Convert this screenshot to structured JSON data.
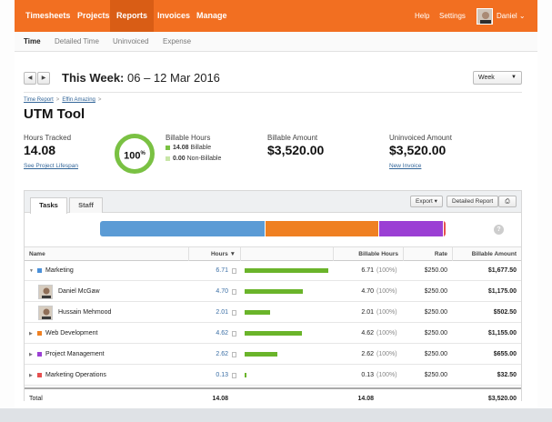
{
  "topnav": {
    "items": [
      "Timesheets",
      "Projects",
      "Reports",
      "Invoices",
      "Manage"
    ],
    "active": "Reports",
    "help": "Help",
    "settings": "Settings",
    "user": "Daniel",
    "caret": "⌄"
  },
  "subnav": {
    "items": [
      "Time",
      "Detailed Time",
      "Uninvoiced",
      "Expense"
    ],
    "active": "Time"
  },
  "week": {
    "prev": "◀",
    "next": "▶",
    "title_bold": "This Week:",
    "title_range": " 06 – 12 Mar 2016",
    "select_value": "Week",
    "select_caret": "▼"
  },
  "breadcrumb": {
    "items": [
      "Time Report",
      "Effin Amazing"
    ],
    "separator": ">"
  },
  "project_title": "UTM Tool",
  "stats": {
    "hours_tracked_label": "Hours Tracked",
    "hours_tracked_value": "14.08",
    "lifespan_link": "See Project Lifespan",
    "billable_percent": "100",
    "billable_percent_suffix": "%",
    "billable_hours_label": "Billable Hours",
    "billable_value": "14.08",
    "billable_text": "Billable",
    "non_billable_value": "0.00",
    "non_billable_text": "Non-Billable",
    "billable_amount_label": "Billable Amount",
    "billable_amount_value": "$3,520.00",
    "uninvoiced_label": "Uninvoiced Amount",
    "uninvoiced_value": "$3,520.00",
    "new_invoice_link": "New Invoice"
  },
  "colors": {
    "brand": "#f26f21",
    "billable": "#7ac143",
    "non_billable": "#c8e6a8",
    "bar_green": "#6ab42a"
  },
  "tabs": [
    "Tasks",
    "Staff"
  ],
  "toolbar": {
    "export": "Export ▾",
    "detailed_report": "Detailed Report",
    "print": "⎙",
    "help": "?"
  },
  "stack_bar": [
    {
      "color": "#5b9bd5",
      "share": 0.476
    },
    {
      "color": "#ef8022",
      "share": 0.328
    },
    {
      "color": "#9b3fd4",
      "share": 0.186
    },
    {
      "color": "#e65050",
      "share": 0.01
    }
  ],
  "table": {
    "columns": [
      "Name",
      "Hours",
      "Billable Hours",
      "Rate",
      "Billable Amount"
    ],
    "hours_sort": "▼",
    "rows": [
      {
        "type": "group",
        "expander": "▼",
        "color": "#4a90d9",
        "name": "Marketing",
        "hours": "6.71",
        "bar": 0.477,
        "billable": "6.71",
        "pct": "(100%)",
        "rate": "$250.00",
        "amount": "$1,677.50"
      },
      {
        "type": "person",
        "name": "Daniel McGaw",
        "hours": "4.70",
        "bar": 0.334,
        "billable": "4.70",
        "pct": "(100%)",
        "rate": "$250.00",
        "amount": "$1,175.00"
      },
      {
        "type": "person",
        "name": "Hussain Mehmood",
        "hours": "2.01",
        "bar": 0.143,
        "billable": "2.01",
        "pct": "(100%)",
        "rate": "$250.00",
        "amount": "$502.50"
      },
      {
        "type": "group",
        "expander": "▶",
        "color": "#ef8022",
        "name": "Web Development",
        "hours": "4.62",
        "bar": 0.328,
        "billable": "4.62",
        "pct": "(100%)",
        "rate": "$250.00",
        "amount": "$1,155.00"
      },
      {
        "type": "group",
        "expander": "▶",
        "color": "#9b3fd4",
        "name": "Project Management",
        "hours": "2.62",
        "bar": 0.186,
        "billable": "2.62",
        "pct": "(100%)",
        "rate": "$250.00",
        "amount": "$655.00"
      },
      {
        "type": "group",
        "expander": "▶",
        "color": "#e65050",
        "name": "Marketing Operations",
        "hours": "0.13",
        "bar": 0.009,
        "billable": "0.13",
        "pct": "(100%)",
        "rate": "$250.00",
        "amount": "$32.50"
      }
    ],
    "total": {
      "label": "Total",
      "hours": "14.08",
      "billable": "14.08",
      "amount": "$3,520.00"
    }
  }
}
